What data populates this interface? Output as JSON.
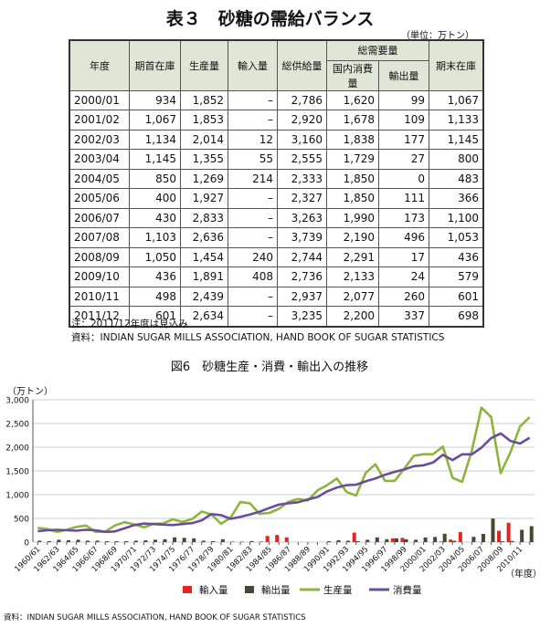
{
  "table": {
    "title": "表３　砂糖の需給バランス",
    "unit": "（単位：万トン）",
    "header": {
      "year": "年度",
      "opening": "期首在庫",
      "production": "生産量",
      "imports": "輸入量",
      "supply": "総供給量",
      "demand": "総需要量",
      "domestic": "国内消費量",
      "exports": "輸出量",
      "closing": "期末在庫"
    },
    "rows": [
      [
        "2000/01",
        "934",
        "1,852",
        "–",
        "2,786",
        "1,620",
        "99",
        "1,067"
      ],
      [
        "2001/02",
        "1,067",
        "1,853",
        "–",
        "2,920",
        "1,678",
        "109",
        "1,133"
      ],
      [
        "2002/03",
        "1,134",
        "2,014",
        "12",
        "3,160",
        "1,838",
        "177",
        "1,145"
      ],
      [
        "2003/04",
        "1,145",
        "1,355",
        "55",
        "2,555",
        "1,729",
        "27",
        "800"
      ],
      [
        "2004/05",
        "850",
        "1,269",
        "214",
        "2,333",
        "1,850",
        "0",
        "483"
      ],
      [
        "2005/06",
        "400",
        "1,927",
        "–",
        "2,327",
        "1,850",
        "111",
        "366"
      ],
      [
        "2006/07",
        "430",
        "2,833",
        "–",
        "3,263",
        "1,990",
        "173",
        "1,100"
      ],
      [
        "2007/08",
        "1,103",
        "2,636",
        "–",
        "3,739",
        "2,190",
        "496",
        "1,053"
      ],
      [
        "2008/09",
        "1,050",
        "1,454",
        "240",
        "2,744",
        "2,291",
        "17",
        "436"
      ],
      [
        "2009/10",
        "436",
        "1,891",
        "408",
        "2,736",
        "2,133",
        "24",
        "579"
      ],
      [
        "2010/11",
        "498",
        "2,439",
        "–",
        "2,937",
        "2,077",
        "260",
        "601"
      ],
      [
        "2011/12",
        "601",
        "2,634",
        "–",
        "3,235",
        "2,200",
        "337",
        "698"
      ]
    ],
    "notes": [
      "注：2011/12年度は見込み",
      "資料：INDIAN SUGAR MILLS ASSOCIATION, HAND BOOK OF SUGAR STATISTICS"
    ]
  },
  "chart_data": {
    "type": "combo",
    "title": "図6　砂糖生産・消費・輸出入の推移",
    "ylabel": "（万トン）",
    "xlabel": "（年度）",
    "source": "資料：INDIAN SUGAR MILLS ASSOCIATION, HAND BOOK OF SUGAR STATISTICS",
    "categories": [
      "1960/61",
      null,
      "1962/63",
      null,
      "1964/65",
      null,
      "1966/67",
      null,
      "1968/69",
      null,
      "1970/71",
      null,
      "1972/73",
      null,
      "1974/75",
      null,
      "1976/77",
      null,
      "1978/79",
      null,
      "1980/81",
      null,
      "1982/83",
      null,
      "1984/85",
      null,
      "1986/87",
      null,
      "1988/89",
      null,
      "1990/91",
      null,
      "1992/93",
      null,
      "1994/95",
      null,
      "1996/97",
      null,
      "1998/99",
      null,
      "2000/01",
      null,
      "2002/03",
      null,
      "2004/05",
      null,
      "2006/07",
      null,
      "2008/09",
      null,
      "2010/11",
      null
    ],
    "ylim": [
      0,
      3000
    ],
    "yticks": [
      0,
      500,
      {
        "value": 1000,
        "label": "1,000"
      },
      {
        "value": 1500,
        "label": "1,500"
      },
      {
        "value": 2000,
        "label": "2,000"
      },
      {
        "value": 2500,
        "label": "2,500"
      },
      {
        "value": 3000,
        "label": "3,000"
      }
    ],
    "grid": true,
    "series": [
      {
        "name": "輸入量",
        "type": "bar",
        "color": "#e8221f",
        "values": [
          0,
          0,
          0,
          0,
          0,
          0,
          0,
          0,
          0,
          0,
          0,
          0,
          0,
          0,
          0,
          0,
          0,
          0,
          0,
          0,
          0,
          0,
          0,
          0,
          130,
          150,
          100,
          0,
          0,
          0,
          0,
          0,
          0,
          200,
          0,
          0,
          0,
          80,
          90,
          0,
          0,
          0,
          12,
          55,
          214,
          0,
          0,
          0,
          240,
          408,
          0,
          0
        ]
      },
      {
        "name": "輸出量",
        "type": "bar",
        "color": "#4a4630",
        "values": [
          30,
          20,
          50,
          40,
          50,
          30,
          30,
          20,
          20,
          20,
          30,
          40,
          50,
          60,
          100,
          90,
          80,
          30,
          20,
          60,
          10,
          10,
          20,
          10,
          0,
          0,
          0,
          0,
          0,
          0,
          20,
          40,
          30,
          20,
          50,
          100,
          60,
          80,
          60,
          50,
          99,
          109,
          177,
          27,
          0,
          111,
          173,
          496,
          17,
          24,
          260,
          337
        ]
      },
      {
        "name": "生産量",
        "type": "line",
        "color": "#8db43c",
        "values": [
          300,
          275,
          215,
          260,
          320,
          350,
          215,
          225,
          350,
          420,
          375,
          310,
          385,
          395,
          480,
          425,
          485,
          645,
          585,
          385,
          515,
          845,
          820,
          595,
          615,
          700,
          850,
          910,
          875,
          1090,
          1200,
          1340,
          1060,
          980,
          1460,
          1640,
          1290,
          1290,
          1550,
          1820,
          1852,
          1853,
          2014,
          1355,
          1269,
          1927,
          2833,
          2636,
          1454,
          1891,
          2439,
          2634
        ]
      },
      {
        "name": "消費量",
        "type": "line",
        "color": "#6a4c9c",
        "values": [
          230,
          250,
          260,
          250,
          240,
          260,
          250,
          215,
          225,
          290,
          360,
          390,
          380,
          370,
          360,
          380,
          400,
          460,
          590,
          570,
          490,
          530,
          580,
          640,
          720,
          790,
          820,
          840,
          900,
          950,
          1070,
          1150,
          1200,
          1210,
          1280,
          1340,
          1420,
          1480,
          1530,
          1600,
          1620,
          1678,
          1838,
          1729,
          1850,
          1850,
          1990,
          2190,
          2291,
          2133,
          2077,
          2200
        ]
      }
    ]
  }
}
